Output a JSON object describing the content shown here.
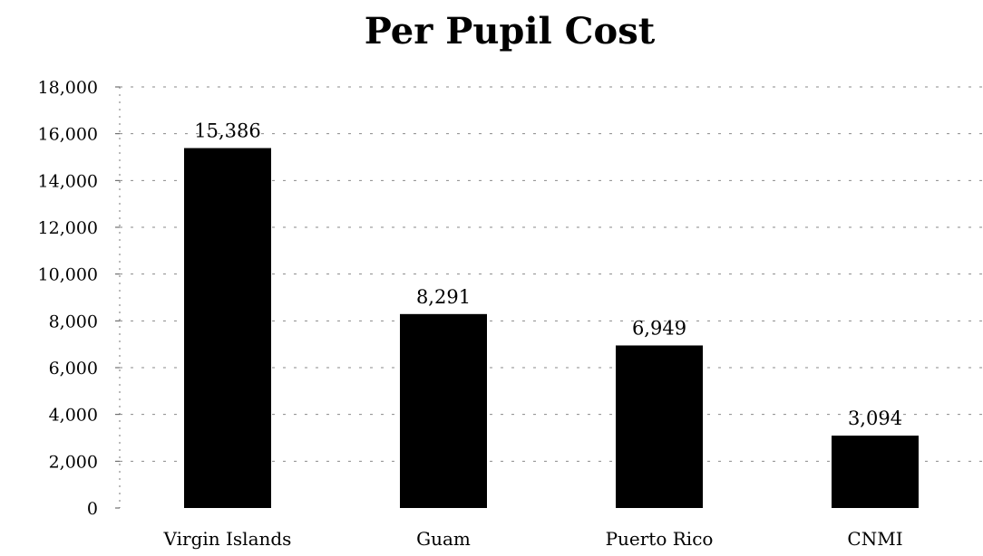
{
  "chart_data": {
    "type": "bar",
    "title": "Per Pupil Cost",
    "categories": [
      "Virgin Islands",
      "Guam",
      "Puerto Rico",
      "CNMI"
    ],
    "values": [
      15386,
      8291,
      6949,
      3094
    ],
    "data_labels": [
      "15,386",
      "8,291",
      "6,949",
      "3,094"
    ],
    "ylim": [
      0,
      18000
    ],
    "yticks": [
      0,
      2000,
      4000,
      6000,
      8000,
      10000,
      12000,
      14000,
      16000,
      18000
    ],
    "ytick_labels": [
      "0",
      "2,000",
      "4,000",
      "6,000",
      "8,000",
      "10,000",
      "12,000",
      "14,000",
      "16,000",
      "18,000"
    ],
    "xlabel": "",
    "ylabel": "",
    "grid": true,
    "bar_color": "#000000"
  }
}
